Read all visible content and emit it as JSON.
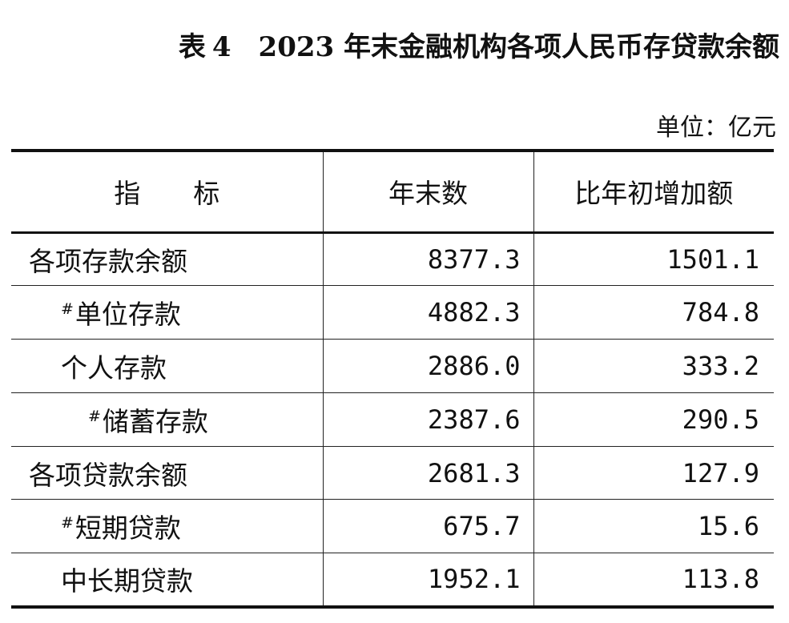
{
  "title": {
    "table_label": "表",
    "table_number": "4",
    "text": "2023 年末金融机构各项人民币存贷款余额"
  },
  "unit": "单位：亿元",
  "table": {
    "headers": {
      "indicator_left": "指",
      "indicator_right": "标",
      "year_end": "年末数",
      "increase": "比年初增加额"
    },
    "rows": [
      {
        "mark": "",
        "label": "各项存款余额",
        "year_end": "8377.3",
        "increase": "1501.1"
      },
      {
        "mark": "#",
        "label": "单位存款",
        "year_end": "4882.3",
        "increase": "784.8"
      },
      {
        "mark": "",
        "label": "个人存款",
        "year_end": "2886.0",
        "increase": "333.2"
      },
      {
        "mark": "#",
        "label": "储蓄存款",
        "year_end": "2387.6",
        "increase": "290.5"
      },
      {
        "mark": "",
        "label": "各项贷款余额",
        "year_end": "2681.3",
        "increase": "127.9"
      },
      {
        "mark": "#",
        "label": "短期贷款",
        "year_end": "675.7",
        "increase": "15.6"
      },
      {
        "mark": "",
        "label": "中长期贷款",
        "year_end": "1952.1",
        "increase": "113.8"
      }
    ]
  }
}
